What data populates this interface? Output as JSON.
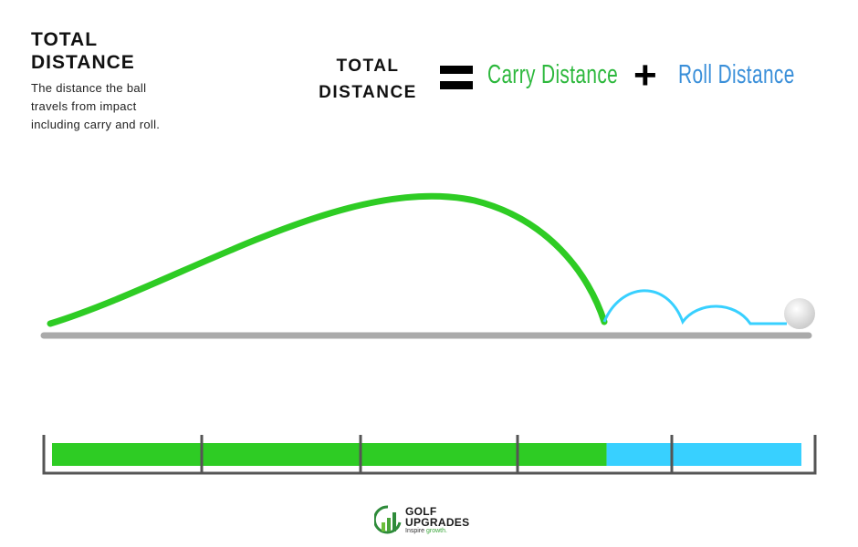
{
  "heading": {
    "title": "TOTAL DISTANCE",
    "description": "The distance the ball travels from impact including carry and roll."
  },
  "equation": {
    "total": "TOTAL DISTANCE",
    "equals_icon": "equals-icon",
    "carry": "Carry Distance",
    "plus_icon": "plus-icon",
    "roll": "Roll Distance"
  },
  "colors": {
    "carry": "#2ecc24",
    "roll": "#38d0ff",
    "carry_text": "#2db83d",
    "roll_text": "#3a8fd9",
    "ground": "#aaaaaa"
  },
  "bar": {
    "carry_fraction": 0.74,
    "roll_fraction": 0.26,
    "tick_count": 4
  },
  "logo": {
    "line1": "GOLF",
    "line2": "UPGRADES",
    "tagline_a": "Inspire ",
    "tagline_b": "growth."
  }
}
